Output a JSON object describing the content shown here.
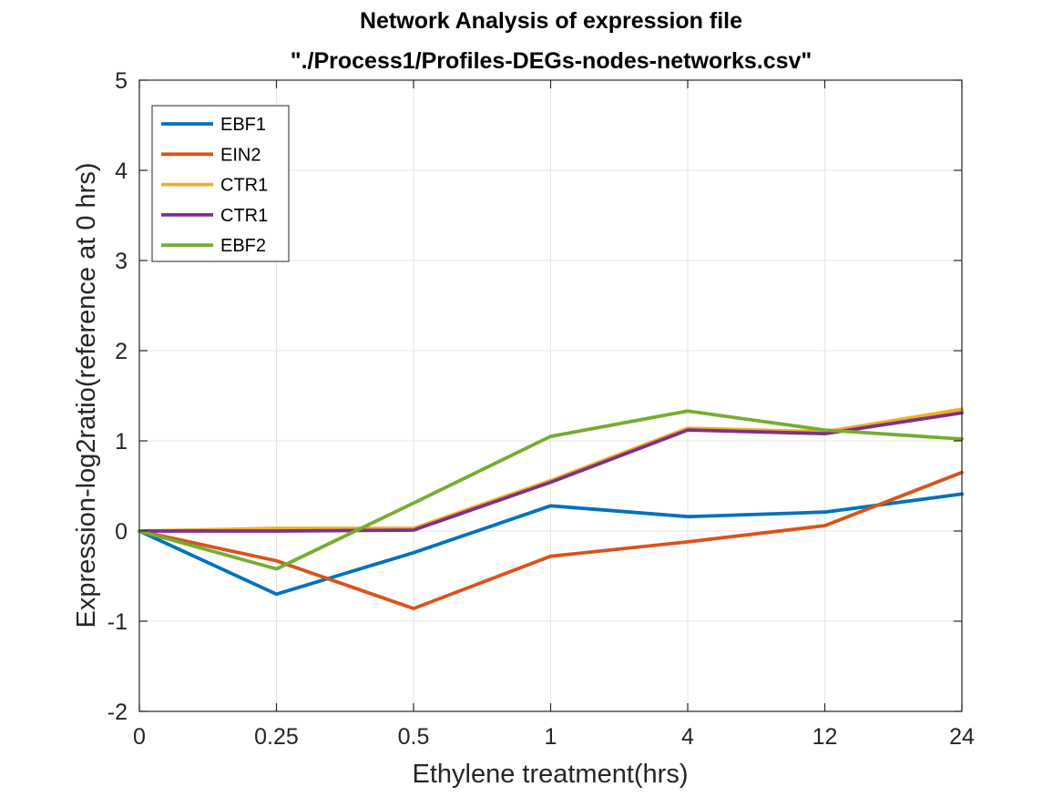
{
  "chart_data": {
    "type": "line",
    "title_lines": [
      "Network Analysis of expression file",
      "\"./Process1/Profiles-DEGs-nodes-networks.csv\""
    ],
    "xlabel": "Ethylene treatment(hrs)",
    "ylabel": "Expression-log2ratio(reference at 0 hrs)",
    "categories": [
      "0",
      "0.25",
      "0.5",
      "1",
      "4",
      "12",
      "24"
    ],
    "ylim": [
      -2,
      5
    ],
    "yticks": [
      "-2",
      "-1",
      "0",
      "1",
      "2",
      "3",
      "4",
      "5"
    ],
    "grid": true,
    "legend_position": "top-left",
    "series": [
      {
        "name": "EBF1",
        "color": "#0072BD",
        "values": [
          0,
          -0.7,
          -0.24,
          0.28,
          0.16,
          0.21,
          0.41
        ]
      },
      {
        "name": "EIN2",
        "color": "#D95319",
        "values": [
          0,
          -0.33,
          -0.86,
          -0.28,
          -0.12,
          0.06,
          0.65
        ]
      },
      {
        "name": "CTR1",
        "color": "#EDB120",
        "values": [
          0,
          0.03,
          0.03,
          0.56,
          1.14,
          1.1,
          1.35
        ]
      },
      {
        "name": "CTR1",
        "color": "#7E2F8E",
        "values": [
          0,
          0.0,
          0.01,
          0.54,
          1.12,
          1.08,
          1.31
        ]
      },
      {
        "name": "EBF2",
        "color": "#77AC30",
        "values": [
          0,
          -0.42,
          0.31,
          1.05,
          1.33,
          1.12,
          1.02
        ]
      }
    ]
  }
}
